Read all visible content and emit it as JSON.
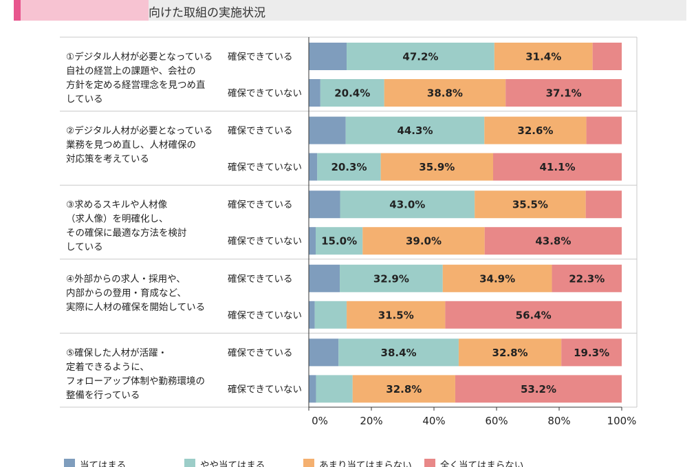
{
  "header": {
    "title": "向けた取組の実施状況"
  },
  "colors": {
    "s0": "#7f9dbd",
    "s1": "#9ccdc8",
    "s2": "#f4b070",
    "s3": "#e88888"
  },
  "chart_data": {
    "type": "bar",
    "orientation": "horizontal-stacked",
    "xlim": [
      0,
      100
    ],
    "ticks": [
      "0%",
      "20%",
      "40%",
      "60%",
      "80%",
      "100%"
    ],
    "grid": false,
    "legend_position": "bottom",
    "series": [
      {
        "name": "当てはまる"
      },
      {
        "name": "やや当てはまる"
      },
      {
        "name": "あまり当てはまらない"
      },
      {
        "name": "全く当てはまらない"
      }
    ],
    "groups": [
      {
        "label_lines": [
          "①デジタル人材が必要となっている",
          "自社の経営上の課題や、会社の",
          "方針を定める経営理念を見つめ直",
          "している"
        ],
        "rows": [
          {
            "label": "確保できている",
            "values": [
              12.1,
              47.2,
              31.4,
              9.3
            ],
            "labels": [
              "",
              "47.2%",
              "31.4%",
              ""
            ]
          },
          {
            "label": "確保できていない",
            "values": [
              3.7,
              20.4,
              38.8,
              37.1
            ],
            "labels": [
              "",
              "20.4%",
              "38.8%",
              "37.1%"
            ]
          }
        ]
      },
      {
        "label_lines": [
          "②デジタル人材が必要となっている",
          "業務を見つめ直し、人材確保の",
          "対応策を考えている"
        ],
        "rows": [
          {
            "label": "確保できている",
            "values": [
              11.8,
              44.3,
              32.6,
              11.3
            ],
            "labels": [
              "",
              "44.3%",
              "32.6%",
              ""
            ]
          },
          {
            "label": "確保できていない",
            "values": [
              2.7,
              20.3,
              35.9,
              41.1
            ],
            "labels": [
              "",
              "20.3%",
              "35.9%",
              "41.1%"
            ]
          }
        ]
      },
      {
        "label_lines": [
          "③求めるスキルや人材像",
          "（求人像）を明確化し、",
          "その確保に最適な方法を検討",
          "している"
        ],
        "rows": [
          {
            "label": "確保できている",
            "values": [
              10.0,
              43.0,
              35.5,
              11.5
            ],
            "labels": [
              "",
              "43.0%",
              "35.5%",
              ""
            ]
          },
          {
            "label": "確保できていない",
            "values": [
              2.2,
              15.0,
              39.0,
              43.8
            ],
            "labels": [
              "",
              "15.0%",
              "39.0%",
              "43.8%"
            ]
          }
        ]
      },
      {
        "label_lines": [
          "④外部からの求人・採用や、",
          "内部からの登用・育成など、",
          "実際に人材の確保を開始している"
        ],
        "rows": [
          {
            "label": "確保できている",
            "values": [
              9.9,
              32.9,
              34.9,
              22.3
            ],
            "labels": [
              "",
              "32.9%",
              "34.9%",
              "22.3%"
            ]
          },
          {
            "label": "確保できていない",
            "values": [
              1.9,
              10.2,
              31.5,
              56.4
            ],
            "labels": [
              "",
              "",
              "31.5%",
              "56.4%"
            ]
          }
        ]
      },
      {
        "label_lines": [
          "⑤確保した人材が活躍・",
          "定着できるように、",
          "フォローアップ体制や勤務環境の",
          "整備を行っている"
        ],
        "rows": [
          {
            "label": "確保できている",
            "values": [
              9.5,
              38.4,
              32.8,
              19.3
            ],
            "labels": [
              "",
              "38.4%",
              "32.8%",
              "19.3%"
            ]
          },
          {
            "label": "確保できていない",
            "values": [
              2.3,
              11.7,
              32.8,
              53.2
            ],
            "labels": [
              "",
              "",
              "32.8%",
              "53.2%"
            ]
          }
        ]
      }
    ]
  }
}
